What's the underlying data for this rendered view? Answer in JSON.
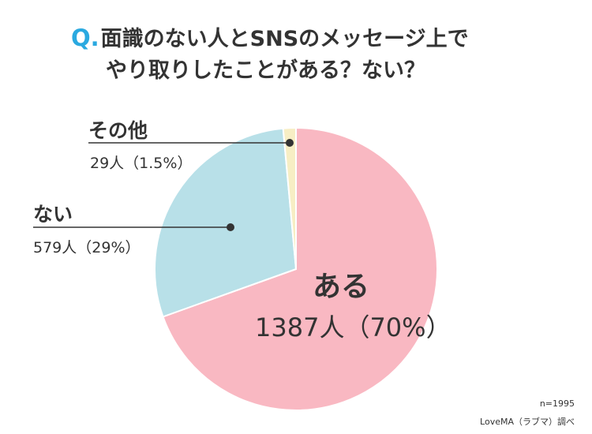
{
  "title": {
    "q_mark": "Q.",
    "line1": "面識のない人とSNSのメッセージ上で",
    "line2": "やり取りしたことがある？ない？"
  },
  "chart_data": {
    "type": "pie",
    "slices": [
      {
        "label": "ある",
        "value": 1387,
        "percent": 70,
        "value_text": "1387人（70%）",
        "color": "#f9b8c2"
      },
      {
        "label": "ない",
        "value": 579,
        "percent": 29,
        "value_text": "579人（29%）",
        "color": "#b8e0e8"
      },
      {
        "label": "その他",
        "value": 29,
        "percent": 1.5,
        "value_text": "29人（1.5%）",
        "color": "#f7eec4"
      }
    ]
  },
  "footer": {
    "n_text": "n=1995",
    "source": "LoveMA（ラブマ）調べ"
  }
}
